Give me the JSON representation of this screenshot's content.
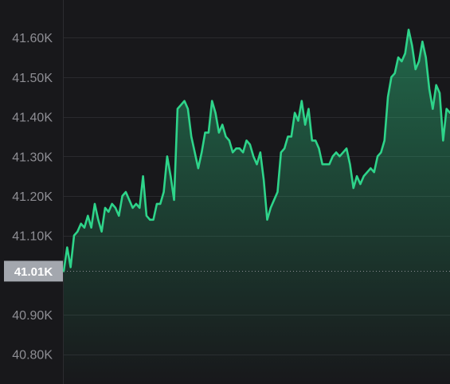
{
  "chart_data": {
    "type": "area",
    "y_ticks": [
      {
        "value": 41.6,
        "label": "41.60K"
      },
      {
        "value": 41.5,
        "label": "41.50K"
      },
      {
        "value": 41.4,
        "label": "41.40K"
      },
      {
        "value": 41.3,
        "label": "41.30K"
      },
      {
        "value": 41.2,
        "label": "41.20K"
      },
      {
        "value": 41.1,
        "label": "41.10K"
      },
      {
        "value": 40.9,
        "label": "40.90K"
      },
      {
        "value": 40.8,
        "label": "40.80K"
      }
    ],
    "ylim": [
      40.725,
      41.695
    ],
    "grid": true,
    "current_value": {
      "value": 41.01,
      "label": "41.01K"
    },
    "series": [
      {
        "color": "#2ed48a",
        "values": [
          41.01,
          41.07,
          41.02,
          41.1,
          41.11,
          41.13,
          41.12,
          41.15,
          41.12,
          41.18,
          41.14,
          41.11,
          41.17,
          41.16,
          41.18,
          41.17,
          41.15,
          41.2,
          41.21,
          41.19,
          41.17,
          41.18,
          41.17,
          41.25,
          41.15,
          41.14,
          41.14,
          41.18,
          41.18,
          41.21,
          41.3,
          41.25,
          41.19,
          41.42,
          41.43,
          41.44,
          41.42,
          41.35,
          41.31,
          41.27,
          41.31,
          41.36,
          41.36,
          41.44,
          41.41,
          41.36,
          41.38,
          41.35,
          41.34,
          41.31,
          41.32,
          41.32,
          41.31,
          41.34,
          41.33,
          41.3,
          41.28,
          41.31,
          41.24,
          41.14,
          41.17,
          41.19,
          41.21,
          41.31,
          41.32,
          41.35,
          41.35,
          41.41,
          41.39,
          41.44,
          41.38,
          41.42,
          41.34,
          41.34,
          41.32,
          41.28,
          41.28,
          41.28,
          41.3,
          41.31,
          41.3,
          41.31,
          41.32,
          41.28,
          41.22,
          41.25,
          41.23,
          41.25,
          41.26,
          41.27,
          41.26,
          41.3,
          41.31,
          41.34,
          41.45,
          41.5,
          41.51,
          41.55,
          41.54,
          41.56,
          41.62,
          41.58,
          41.52,
          41.54,
          41.59,
          41.55,
          41.47,
          41.42,
          41.48,
          41.46,
          41.34,
          41.42,
          41.41
        ]
      }
    ]
  }
}
